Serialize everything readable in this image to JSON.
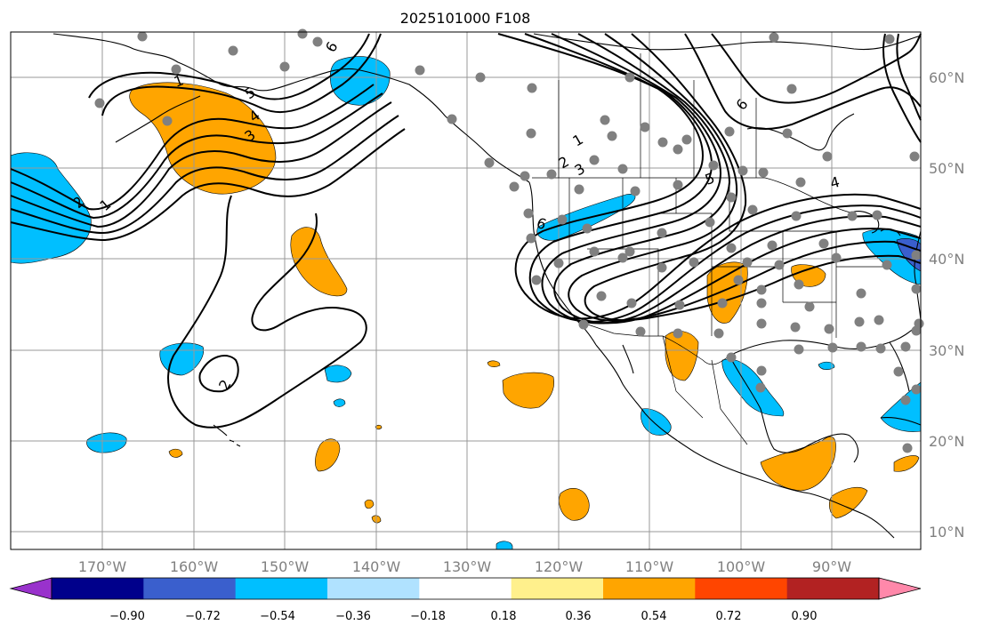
{
  "title": "2025101000 F108",
  "map": {
    "lon_labels": [
      "170°W",
      "160°W",
      "150°W",
      "140°W",
      "130°W",
      "120°W",
      "110°W",
      "100°W",
      "90°W"
    ],
    "lat_labels": [
      "60°N",
      "50°N",
      "40°N",
      "30°N",
      "20°N",
      "10°N"
    ],
    "contour_labels": [
      "6",
      "5",
      "4",
      "3",
      "2",
      "1",
      "1",
      "2",
      "3",
      "4",
      "5",
      "6",
      "6",
      "2",
      "1"
    ],
    "shading_colors": {
      "negative_light": "#00bfff",
      "positive_orange": "#ffa500",
      "negative_strong": "#3a5fcd",
      "station_dots": "#808080"
    }
  },
  "colorbar": {
    "labels": [
      "−0.90",
      "−0.72",
      "−0.54",
      "−0.36",
      "−0.18",
      "0.18",
      "0.36",
      "0.54",
      "0.72",
      "0.90"
    ],
    "colors": [
      "#9932cc",
      "#00008b",
      "#3a5fcd",
      "#00bfff",
      "#b0e2ff",
      "#ffffff",
      "#fff08c",
      "#ffa500",
      "#ff4500",
      "#b22222",
      "#ff88aa"
    ]
  }
}
